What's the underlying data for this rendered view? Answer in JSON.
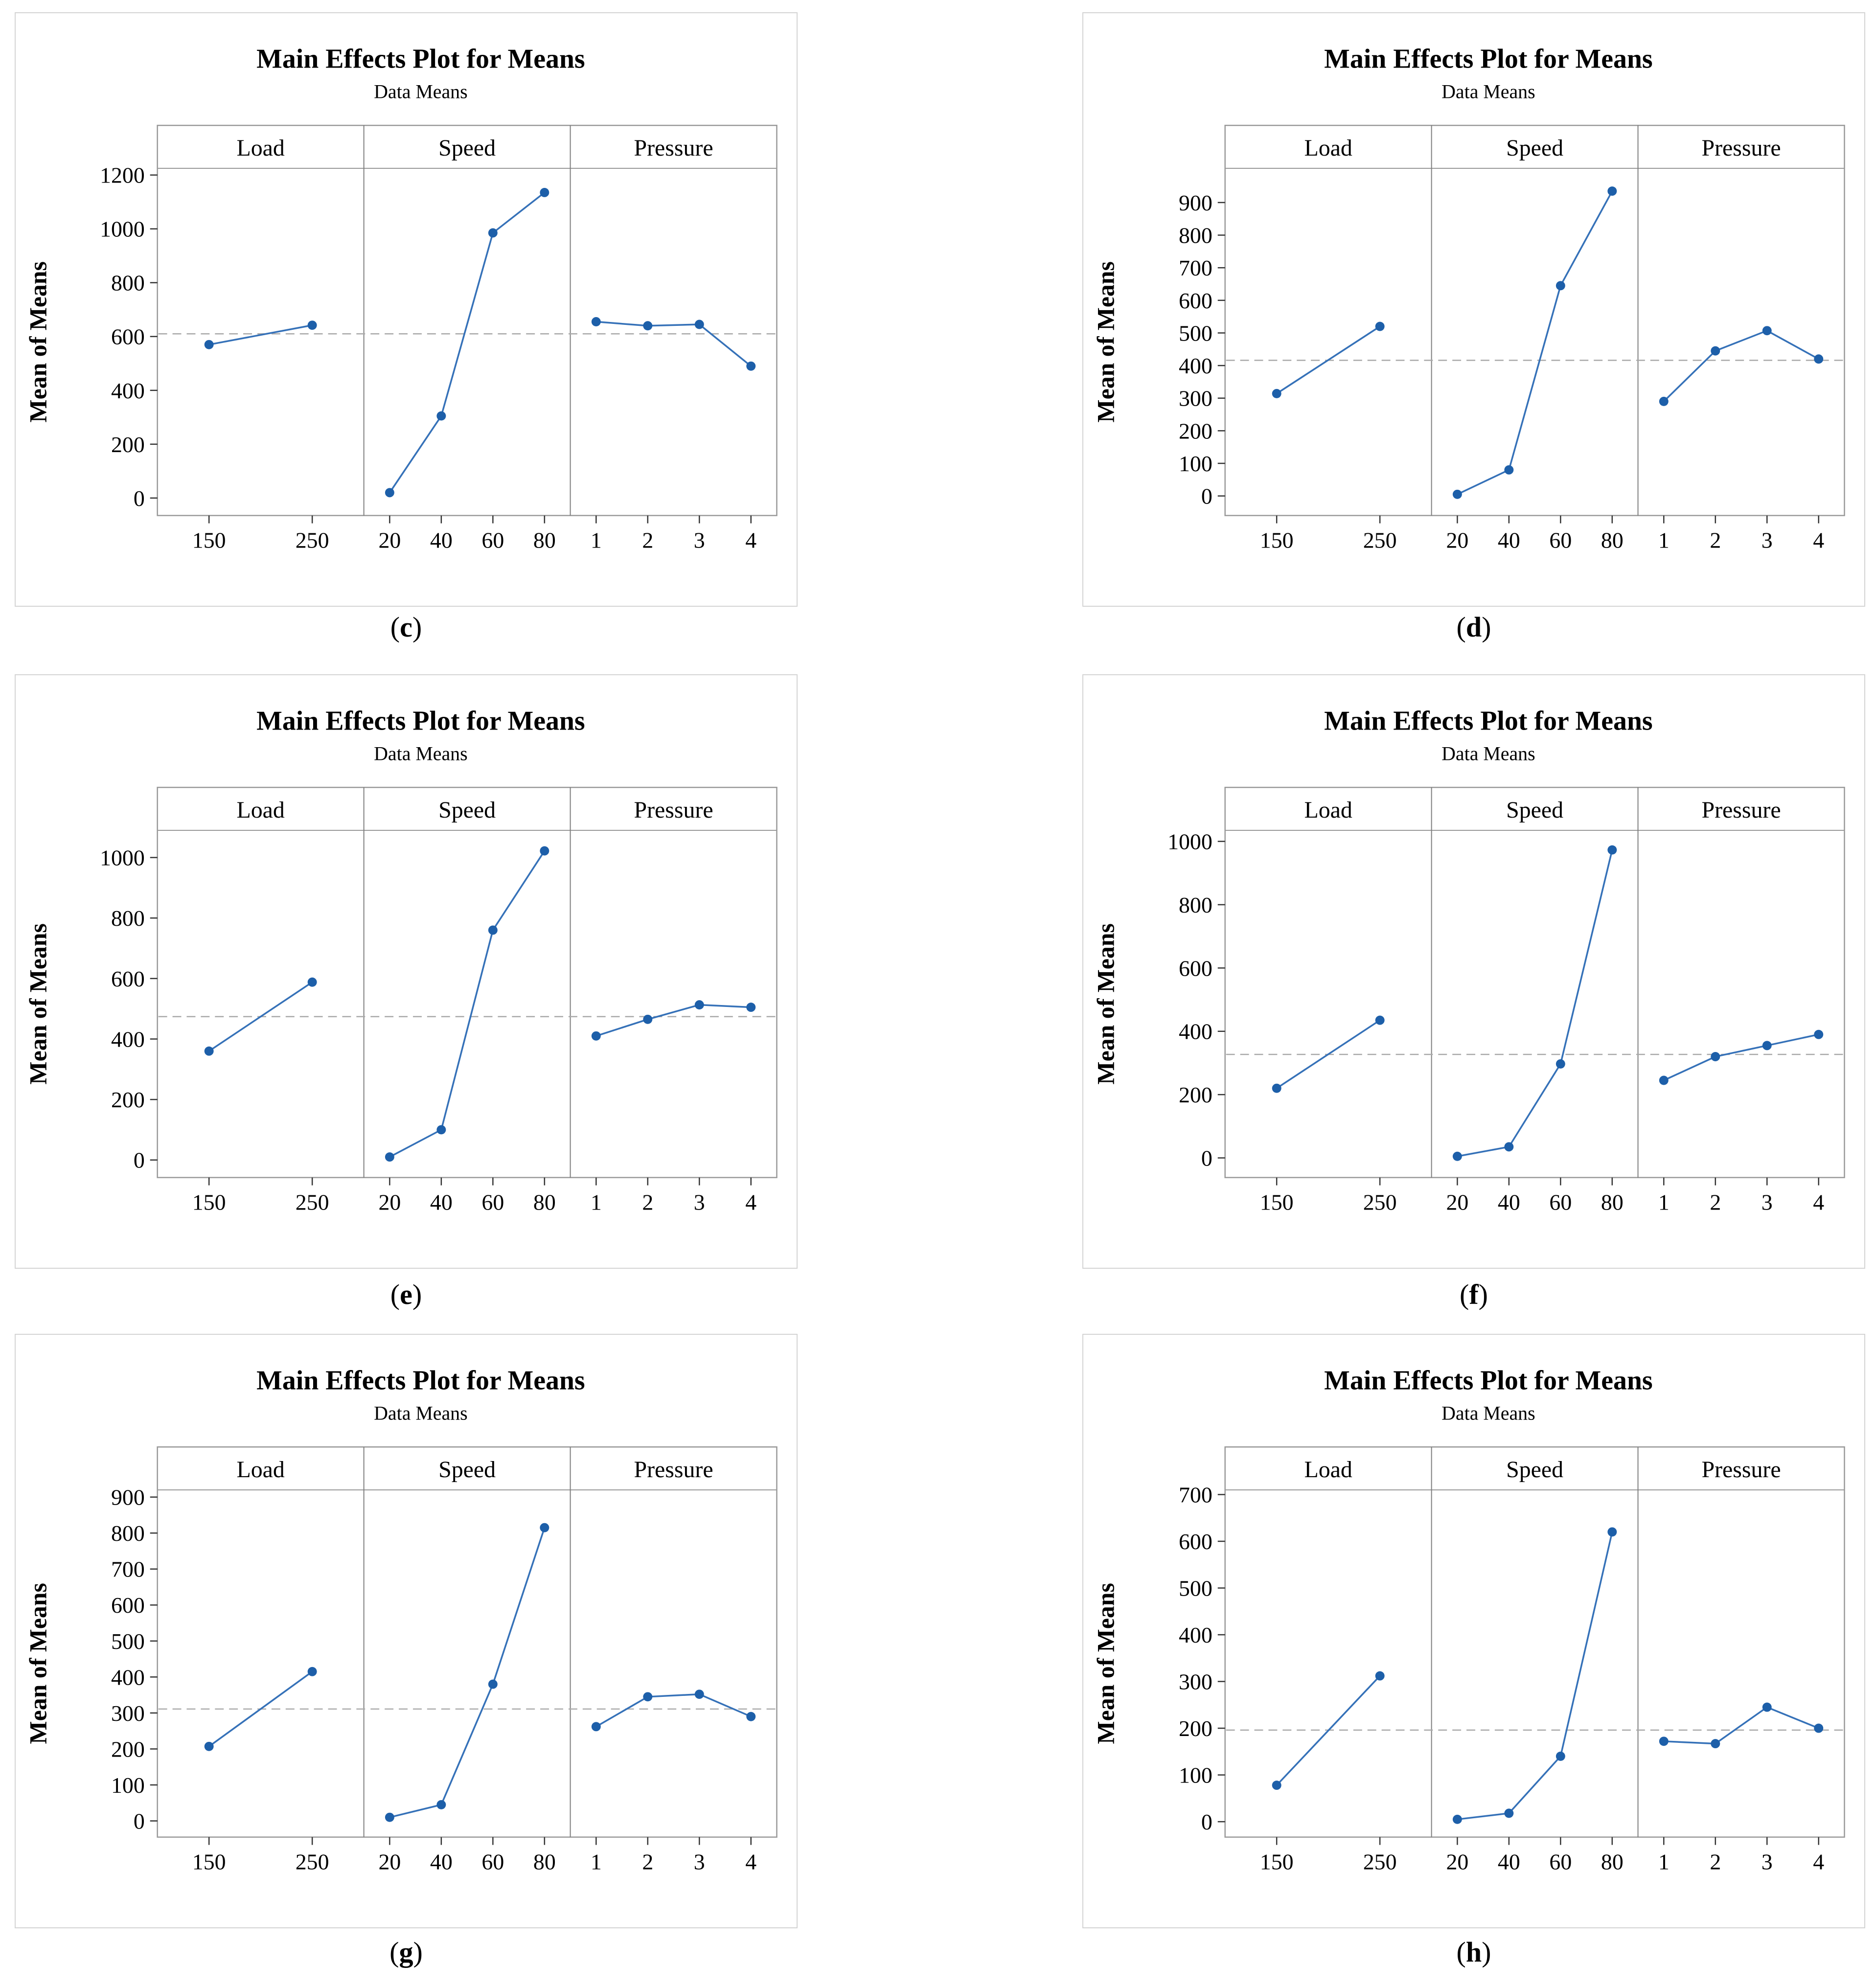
{
  "style": {
    "series_line": "#3571b8",
    "marker_fill": "#1d5fa9",
    "reference_dash": "#a9a9a9",
    "frame": "#999999",
    "separator": "#7f7f7f",
    "tick": "#333333",
    "chart_border": "#d4d4d4",
    "background": "#ffffff"
  },
  "chart_data": [
    {
      "id": "c",
      "type": "line",
      "title": "Main Effects Plot for Means",
      "subtitle": "Data Means",
      "ylabel": "Mean of Means",
      "caption_open": "(",
      "caption_letter": "c",
      "caption_close": ")",
      "panels": [
        {
          "label": "Load",
          "categories": [
            "150",
            "250"
          ],
          "values": [
            570,
            642
          ]
        },
        {
          "label": "Speed",
          "categories": [
            "20",
            "40",
            "60",
            "80"
          ],
          "values": [
            20,
            305,
            985,
            1135
          ]
        },
        {
          "label": "Pressure",
          "categories": [
            "1",
            "2",
            "3",
            "4"
          ],
          "values": [
            655,
            640,
            645,
            490
          ]
        }
      ],
      "reference_line": 610,
      "yticks": [
        0,
        200,
        400,
        600,
        800,
        1000,
        1200
      ],
      "ylim": [
        -65,
        1225
      ],
      "grid": false,
      "legend": "none"
    },
    {
      "id": "d",
      "type": "line",
      "title": "Main Effects Plot for Means",
      "subtitle": "Data Means",
      "ylabel": "Mean of Means",
      "caption_open": "(",
      "caption_letter": "d",
      "caption_close": ")",
      "panels": [
        {
          "label": "Load",
          "categories": [
            "150",
            "250"
          ],
          "values": [
            314,
            520
          ]
        },
        {
          "label": "Speed",
          "categories": [
            "20",
            "40",
            "60",
            "80"
          ],
          "values": [
            5,
            80,
            645,
            935
          ]
        },
        {
          "label": "Pressure",
          "categories": [
            "1",
            "2",
            "3",
            "4"
          ],
          "values": [
            290,
            445,
            507,
            420
          ]
        }
      ],
      "reference_line": 416,
      "yticks": [
        0,
        100,
        200,
        300,
        400,
        500,
        600,
        700,
        800,
        900
      ],
      "ylim": [
        -60,
        1005
      ],
      "grid": false,
      "legend": "none"
    },
    {
      "id": "e",
      "type": "line",
      "title": "Main Effects Plot for Means",
      "subtitle": "Data Means",
      "ylabel": "Mean of Means",
      "caption_open": "(",
      "caption_letter": "e",
      "caption_close": ")",
      "panels": [
        {
          "label": "Load",
          "categories": [
            "150",
            "250"
          ],
          "values": [
            360,
            588
          ]
        },
        {
          "label": "Speed",
          "categories": [
            "20",
            "40",
            "60",
            "80"
          ],
          "values": [
            10,
            100,
            760,
            1022
          ]
        },
        {
          "label": "Pressure",
          "categories": [
            "1",
            "2",
            "3",
            "4"
          ],
          "values": [
            410,
            465,
            513,
            505
          ]
        }
      ],
      "reference_line": 474,
      "yticks": [
        0,
        200,
        400,
        600,
        800,
        1000
      ],
      "ylim": [
        -58,
        1090
      ],
      "grid": false,
      "legend": "none"
    },
    {
      "id": "f",
      "type": "line",
      "title": "Main Effects Plot for Means",
      "subtitle": "Data Means",
      "ylabel": "Mean of Means",
      "caption_open": "(",
      "caption_letter": "f",
      "caption_close": ")",
      "panels": [
        {
          "label": "Load",
          "categories": [
            "150",
            "250"
          ],
          "values": [
            220,
            435
          ]
        },
        {
          "label": "Speed",
          "categories": [
            "20",
            "40",
            "60",
            "80"
          ],
          "values": [
            5,
            35,
            297,
            973
          ]
        },
        {
          "label": "Pressure",
          "categories": [
            "1",
            "2",
            "3",
            "4"
          ],
          "values": [
            245,
            320,
            355,
            390
          ]
        }
      ],
      "reference_line": 327,
      "yticks": [
        0,
        200,
        400,
        600,
        800,
        1000
      ],
      "ylim": [
        -62,
        1035
      ],
      "grid": false,
      "legend": "none"
    },
    {
      "id": "g",
      "type": "line",
      "title": "Main Effects Plot for Means",
      "subtitle": "Data Means",
      "ylabel": "Mean of Means",
      "caption_open": "(",
      "caption_letter": "g",
      "caption_close": ")",
      "panels": [
        {
          "label": "Load",
          "categories": [
            "150",
            "250"
          ],
          "values": [
            207,
            415
          ]
        },
        {
          "label": "Speed",
          "categories": [
            "20",
            "40",
            "60",
            "80"
          ],
          "values": [
            10,
            45,
            380,
            815
          ]
        },
        {
          "label": "Pressure",
          "categories": [
            "1",
            "2",
            "3",
            "4"
          ],
          "values": [
            262,
            345,
            352,
            290
          ]
        }
      ],
      "reference_line": 311,
      "yticks": [
        0,
        100,
        200,
        300,
        400,
        500,
        600,
        700,
        800,
        900
      ],
      "ylim": [
        -45,
        920
      ],
      "grid": false,
      "legend": "none"
    },
    {
      "id": "h",
      "type": "line",
      "title": "Main Effects Plot for Means",
      "subtitle": "Data Means",
      "ylabel": "Mean of Means",
      "caption_open": "(",
      "caption_letter": "h",
      "caption_close": ")",
      "panels": [
        {
          "label": "Load",
          "categories": [
            "150",
            "250"
          ],
          "values": [
            78,
            312
          ]
        },
        {
          "label": "Speed",
          "categories": [
            "20",
            "40",
            "60",
            "80"
          ],
          "values": [
            5,
            18,
            140,
            620
          ]
        },
        {
          "label": "Pressure",
          "categories": [
            "1",
            "2",
            "3",
            "4"
          ],
          "values": [
            172,
            167,
            245,
            200
          ]
        }
      ],
      "reference_line": 196,
      "yticks": [
        0,
        100,
        200,
        300,
        400,
        500,
        600,
        700
      ],
      "ylim": [
        -33,
        710
      ],
      "grid": false,
      "legend": "none"
    }
  ]
}
